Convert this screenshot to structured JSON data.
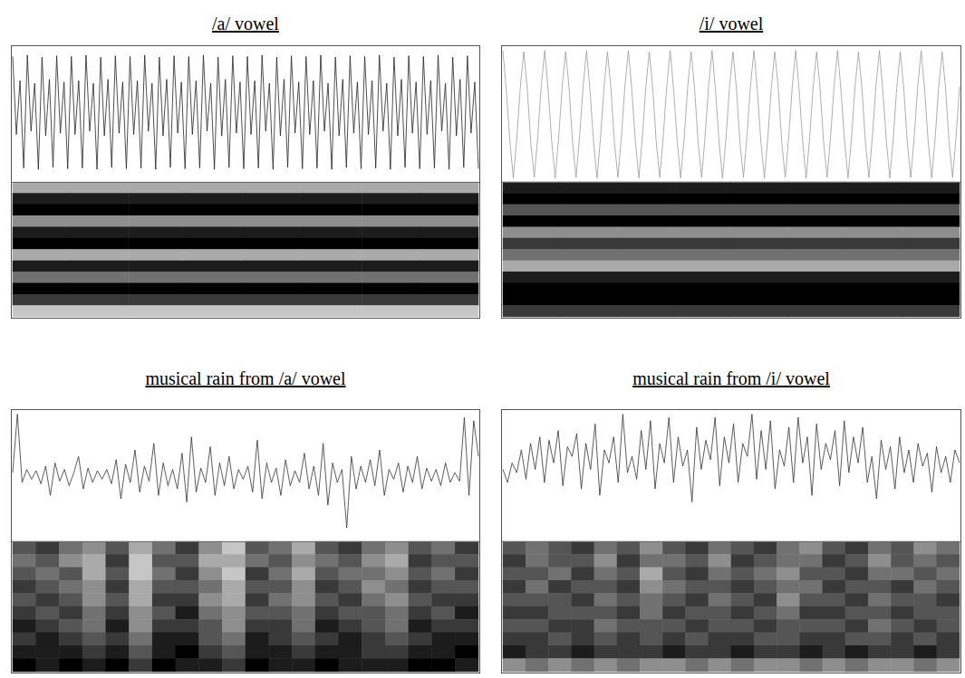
{
  "chart_data": [
    {
      "type": "spectrogram",
      "title": "/a/ vowel",
      "tick_labels": false,
      "waveform": {
        "color": "#222222",
        "ylim": [
          -1,
          1
        ],
        "values": [
          0.86,
          -0.3,
          0.5,
          -0.8,
          0.88,
          -0.25,
          0.46,
          -0.82,
          0.85,
          -0.32,
          0.52,
          -0.79,
          0.87,
          -0.28,
          0.48,
          -0.81,
          0.86,
          -0.3,
          0.5,
          -0.8,
          0.88,
          -0.25,
          0.46,
          -0.82,
          0.85,
          -0.32,
          0.52,
          -0.79,
          0.87,
          -0.28,
          0.48,
          -0.81,
          0.86,
          -0.3,
          0.5,
          -0.8,
          0.88,
          -0.25,
          0.46,
          -0.82,
          0.85,
          -0.32,
          0.52,
          -0.79,
          0.87,
          -0.28,
          0.48,
          -0.81,
          0.86,
          -0.3,
          0.5,
          -0.8,
          0.88,
          -0.25,
          0.46,
          -0.82,
          0.85,
          -0.32,
          0.52,
          -0.79,
          0.87,
          -0.28,
          0.48,
          -0.81,
          0.86,
          -0.3,
          0.5,
          -0.8,
          0.88,
          -0.25,
          0.46,
          -0.82,
          0.85,
          -0.32,
          0.52,
          -0.79,
          0.87,
          -0.28,
          0.48,
          -0.81,
          0.86,
          -0.3,
          0.5,
          -0.8,
          0.88,
          -0.25,
          0.46,
          -0.82,
          0.85,
          -0.32,
          0.52,
          -0.79,
          0.87,
          -0.28,
          0.48,
          -0.81,
          0.86,
          -0.3,
          0.5,
          -0.8,
          0.88,
          -0.25,
          0.46,
          -0.82,
          0.85,
          -0.32,
          0.52,
          -0.79,
          0.87,
          -0.28,
          0.48,
          -0.81,
          0.86,
          -0.3,
          0.5,
          -0.8,
          0.88,
          -0.25,
          0.46,
          -0.82,
          0.85,
          -0.32,
          0.52,
          -0.79,
          0.87,
          -0.28,
          0.48,
          -0.81
        ]
      },
      "spectrogram": {
        "intensity_range": [
          0,
          9
        ],
        "cells": [
          [
            3,
            3,
            3,
            3,
            3,
            3,
            3,
            3
          ],
          [
            8,
            8,
            8,
            8,
            8,
            8,
            8,
            8
          ],
          [
            9,
            9,
            9,
            9,
            9,
            9,
            9,
            9
          ],
          [
            4,
            4,
            4,
            4,
            4,
            4,
            4,
            4
          ],
          [
            8,
            8,
            8,
            8,
            8,
            8,
            8,
            8
          ],
          [
            9,
            9,
            9,
            9,
            9,
            9,
            9,
            9
          ],
          [
            3,
            3,
            3,
            3,
            3,
            3,
            3,
            3
          ],
          [
            8,
            8,
            8,
            8,
            8,
            8,
            8,
            8
          ],
          [
            5,
            5,
            5,
            5,
            5,
            5,
            5,
            5
          ],
          [
            9,
            9,
            9,
            9,
            9,
            9,
            9,
            9
          ],
          [
            7,
            7,
            7,
            7,
            7,
            7,
            7,
            7
          ],
          [
            2,
            2,
            2,
            2,
            2,
            2,
            2,
            2
          ]
        ]
      }
    },
    {
      "type": "spectrogram",
      "title": "/i/ vowel",
      "tick_labels": false,
      "waveform": {
        "color": "#9a9a9a",
        "ylim": [
          -1,
          1
        ],
        "values": [
          0.95,
          0.35,
          -0.4,
          -0.95,
          -0.35,
          0.4,
          0.93,
          0.38,
          -0.42,
          -0.94,
          -0.33,
          0.41,
          0.95,
          0.35,
          -0.4,
          -0.95,
          -0.35,
          0.4,
          0.93,
          0.38,
          -0.42,
          -0.94,
          -0.33,
          0.41,
          0.95,
          0.35,
          -0.4,
          -0.95,
          -0.35,
          0.4,
          0.93,
          0.38,
          -0.42,
          -0.94,
          -0.33,
          0.41,
          0.95,
          0.35,
          -0.4,
          -0.95,
          -0.35,
          0.4,
          0.93,
          0.38,
          -0.42,
          -0.94,
          -0.33,
          0.41,
          0.95,
          0.35,
          -0.4,
          -0.95,
          -0.35,
          0.4,
          0.93,
          0.38,
          -0.42,
          -0.94,
          -0.33,
          0.41,
          0.95,
          0.35,
          -0.4,
          -0.95,
          -0.35,
          0.4,
          0.93,
          0.38,
          -0.42,
          -0.94,
          -0.33,
          0.41,
          0.95,
          0.35,
          -0.4,
          -0.95,
          -0.35,
          0.4,
          0.93,
          0.38,
          -0.42,
          -0.94,
          -0.33,
          0.41,
          0.95,
          0.35,
          -0.4,
          -0.95,
          -0.35,
          0.4,
          0.93,
          0.38,
          -0.42,
          -0.94,
          -0.33,
          0.41,
          0.95,
          0.35,
          -0.4,
          -0.95,
          -0.35,
          0.4,
          0.93,
          0.38,
          -0.42,
          -0.94,
          -0.33,
          0.41,
          0.95,
          0.35,
          -0.4,
          -0.95,
          -0.35,
          0.4,
          0.93,
          0.38,
          -0.42,
          -0.94,
          -0.33,
          0.41,
          0.95,
          0.35,
          -0.4,
          -0.95,
          -0.35,
          0.4,
          0.93,
          0.38,
          -0.42,
          -0.94,
          -0.33,
          0.41
        ]
      },
      "spectrogram": {
        "intensity_range": [
          0,
          9
        ],
        "cells": [
          [
            8,
            8,
            8,
            8,
            8,
            8,
            8,
            8
          ],
          [
            9,
            9,
            9,
            9,
            9,
            9,
            9,
            9
          ],
          [
            6,
            6,
            6,
            6,
            6,
            6,
            6,
            6
          ],
          [
            9,
            9,
            9,
            9,
            9,
            9,
            9,
            9
          ],
          [
            4,
            4,
            4,
            4,
            4,
            4,
            4,
            4
          ],
          [
            7,
            7,
            7,
            7,
            7,
            7,
            7,
            7
          ],
          [
            5,
            5,
            5,
            5,
            5,
            5,
            5,
            5
          ],
          [
            3,
            3,
            3,
            3,
            3,
            3,
            3,
            3
          ],
          [
            8,
            8,
            8,
            8,
            8,
            8,
            8,
            8
          ],
          [
            9,
            9,
            9,
            9,
            9,
            9,
            9,
            9
          ],
          [
            9,
            9,
            9,
            9,
            9,
            9,
            9,
            9
          ],
          [
            7,
            7,
            7,
            7,
            7,
            7,
            7,
            7
          ]
        ]
      }
    },
    {
      "type": "spectrogram",
      "title": "musical rain from /a/ vowel",
      "tick_labels": false,
      "waveform": {
        "color": "#333333",
        "ylim": [
          -1,
          1
        ],
        "values": [
          0.05,
          0.95,
          -0.1,
          0.1,
          -0.05,
          0.08,
          -0.12,
          0.15,
          -0.3,
          0.2,
          -0.08,
          0.1,
          -0.15,
          0.05,
          0.3,
          -0.2,
          0.12,
          -0.1,
          0.08,
          -0.05,
          0.1,
          -0.12,
          0.25,
          -0.35,
          0.18,
          -0.1,
          0.4,
          -0.25,
          0.15,
          -0.08,
          0.5,
          -0.3,
          0.2,
          -0.15,
          0.1,
          -0.2,
          0.35,
          -0.4,
          0.6,
          -0.25,
          0.12,
          -0.1,
          0.45,
          -0.3,
          0.2,
          -0.15,
          0.3,
          -0.2,
          0.1,
          -0.05,
          0.15,
          -0.25,
          0.55,
          -0.35,
          0.2,
          -0.1,
          0.12,
          -0.3,
          0.25,
          -0.15,
          0.08,
          -0.1,
          0.35,
          -0.2,
          0.15,
          -0.3,
          0.5,
          -0.45,
          0.2,
          -0.1,
          0.1,
          -0.8,
          0.3,
          -0.2,
          0.15,
          -0.1,
          0.25,
          -0.15,
          0.4,
          -0.3,
          0.1,
          -0.05,
          0.2,
          -0.25,
          0.15,
          -0.1,
          0.3,
          -0.2,
          0.12,
          -0.08,
          0.1,
          -0.15,
          0.2,
          -0.1,
          0.05,
          -0.08,
          0.9,
          -0.3,
          0.85,
          0.3
        ]
      },
      "spectrogram": {
        "intensity_range": [
          0,
          9
        ],
        "cells": [
          [
            6,
            7,
            5,
            4,
            6,
            3,
            5,
            7,
            4,
            2,
            6,
            5,
            3,
            6,
            7,
            5,
            4,
            6,
            5,
            7
          ],
          [
            5,
            6,
            4,
            3,
            7,
            2,
            6,
            6,
            3,
            3,
            5,
            6,
            4,
            5,
            6,
            4,
            3,
            7,
            6,
            6
          ],
          [
            6,
            5,
            6,
            3,
            6,
            2,
            5,
            7,
            4,
            2,
            7,
            5,
            3,
            6,
            5,
            5,
            4,
            6,
            5,
            7
          ],
          [
            7,
            6,
            5,
            4,
            7,
            3,
            6,
            6,
            5,
            3,
            6,
            6,
            4,
            7,
            6,
            4,
            5,
            7,
            6,
            6
          ],
          [
            6,
            7,
            6,
            4,
            6,
            3,
            7,
            7,
            4,
            3,
            7,
            5,
            4,
            6,
            7,
            5,
            4,
            6,
            7,
            7
          ],
          [
            7,
            6,
            7,
            5,
            7,
            4,
            6,
            8,
            5,
            4,
            6,
            6,
            5,
            7,
            6,
            6,
            5,
            7,
            6,
            8
          ],
          [
            8,
            7,
            6,
            5,
            8,
            4,
            7,
            7,
            6,
            4,
            7,
            7,
            5,
            8,
            7,
            6,
            5,
            8,
            7,
            7
          ],
          [
            7,
            8,
            7,
            6,
            7,
            5,
            8,
            8,
            6,
            5,
            8,
            7,
            6,
            7,
            8,
            7,
            6,
            7,
            8,
            8
          ],
          [
            8,
            8,
            8,
            7,
            8,
            6,
            8,
            9,
            7,
            6,
            8,
            8,
            7,
            8,
            8,
            7,
            7,
            8,
            8,
            9
          ],
          [
            9,
            8,
            9,
            8,
            9,
            7,
            9,
            8,
            8,
            7,
            9,
            8,
            8,
            9,
            8,
            8,
            8,
            9,
            9,
            8
          ]
        ]
      }
    },
    {
      "type": "spectrogram",
      "title": "musical rain from /i/ vowel",
      "tick_labels": false,
      "waveform": {
        "color": "#333333",
        "ylim": [
          -1,
          1
        ],
        "values": [
          0.1,
          -0.1,
          0.2,
          0.05,
          0.4,
          -0.05,
          0.5,
          0.1,
          0.6,
          -0.1,
          0.55,
          0.2,
          0.7,
          -0.15,
          0.45,
          0.3,
          0.65,
          -0.2,
          0.5,
          0.1,
          0.8,
          -0.3,
          0.4,
          0.2,
          0.6,
          -0.1,
          0.95,
          0.05,
          0.3,
          -0.05,
          0.7,
          0.1,
          0.85,
          -0.2,
          0.5,
          0.2,
          0.9,
          -0.1,
          0.6,
          0.15,
          0.4,
          -0.4,
          0.75,
          0.1,
          0.55,
          0.25,
          0.9,
          -0.15,
          0.6,
          0.2,
          0.8,
          -0.1,
          0.5,
          0.3,
          0.95,
          -0.05,
          0.7,
          0.1,
          0.85,
          -0.2,
          0.4,
          0.15,
          0.75,
          -0.1,
          0.9,
          0.2,
          0.6,
          -0.3,
          0.8,
          0.1,
          0.5,
          0.25,
          0.7,
          -0.15,
          0.85,
          0.05,
          0.6,
          0.2,
          0.75,
          -0.1,
          0.3,
          -0.35,
          0.55,
          0.1,
          0.45,
          -0.2,
          0.6,
          0.05,
          0.4,
          -0.1,
          0.5,
          0.15,
          0.35,
          -0.25,
          0.45,
          0.05,
          0.3,
          -0.1,
          0.4,
          0.2
        ]
      },
      "spectrogram": {
        "intensity_range": [
          0,
          9
        ],
        "cells": [
          [
            6,
            5,
            6,
            7,
            5,
            6,
            4,
            6,
            7,
            5,
            6,
            7,
            5,
            4,
            6,
            7,
            5,
            6,
            4,
            5
          ],
          [
            7,
            5,
            6,
            6,
            4,
            7,
            5,
            5,
            6,
            4,
            7,
            6,
            5,
            5,
            7,
            6,
            4,
            6,
            5,
            6
          ],
          [
            6,
            6,
            5,
            7,
            5,
            6,
            3,
            6,
            7,
            5,
            6,
            5,
            4,
            6,
            6,
            7,
            5,
            5,
            6,
            5
          ],
          [
            7,
            5,
            7,
            6,
            6,
            7,
            4,
            5,
            6,
            6,
            7,
            6,
            5,
            5,
            7,
            6,
            6,
            7,
            5,
            6
          ],
          [
            6,
            6,
            6,
            7,
            5,
            6,
            5,
            6,
            7,
            5,
            6,
            7,
            4,
            6,
            6,
            7,
            5,
            6,
            6,
            7
          ],
          [
            7,
            7,
            6,
            6,
            6,
            7,
            5,
            7,
            6,
            6,
            7,
            6,
            5,
            7,
            7,
            6,
            6,
            7,
            6,
            6
          ],
          [
            6,
            6,
            7,
            7,
            5,
            6,
            6,
            6,
            7,
            6,
            6,
            7,
            6,
            6,
            6,
            7,
            5,
            6,
            7,
            6
          ],
          [
            7,
            7,
            6,
            7,
            6,
            7,
            6,
            7,
            6,
            7,
            7,
            6,
            6,
            7,
            7,
            6,
            6,
            7,
            6,
            7
          ],
          [
            8,
            7,
            7,
            8,
            7,
            7,
            7,
            8,
            7,
            7,
            8,
            7,
            7,
            8,
            7,
            8,
            7,
            7,
            8,
            7
          ],
          [
            4,
            5,
            4,
            5,
            4,
            5,
            4,
            4,
            5,
            4,
            5,
            4,
            4,
            5,
            4,
            5,
            4,
            4,
            5,
            4
          ]
        ]
      }
    }
  ]
}
